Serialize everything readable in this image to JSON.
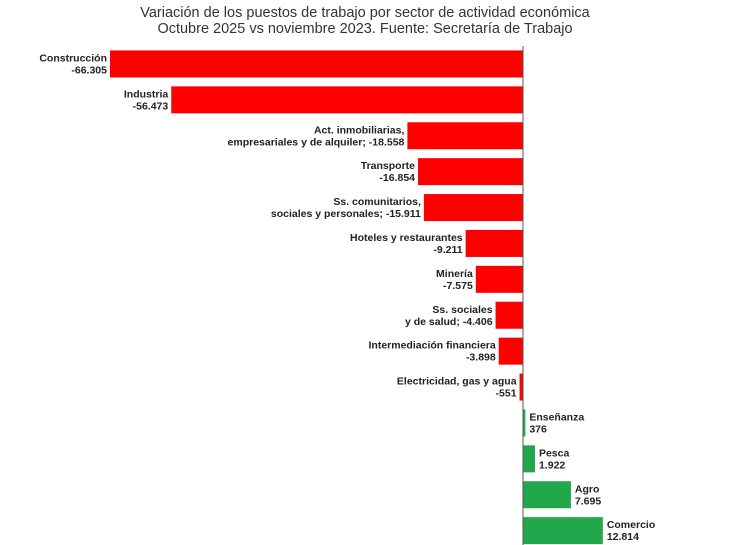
{
  "chart_data": {
    "type": "bar",
    "orientation": "horizontal",
    "title": "Variación de los puestos de trabajo por sector de actividad económica",
    "subtitle": "Octubre 2025 vs noviembre 2023. Fuente: Secretaría de Trabajo",
    "xlabel": "",
    "ylabel": "",
    "xlim": [
      -66305,
      12814
    ],
    "grid": false,
    "colors": {
      "negative": "#ff0000",
      "positive": "#22a74a",
      "axis": "#555555"
    },
    "categories": [
      [
        "Construcción"
      ],
      [
        "Industria"
      ],
      [
        "Act. inmobiliarias,",
        "empresariales y de alquiler;"
      ],
      [
        "Transporte"
      ],
      [
        "Ss. comunitarios,",
        "sociales y personales;"
      ],
      [
        "Hoteles y restaurantes"
      ],
      [
        "Minería"
      ],
      [
        "Ss. sociales",
        "y de salud;"
      ],
      [
        "Intermediación financiera"
      ],
      [
        "Electricidad, gas y agua"
      ],
      [
        "Enseñanza"
      ],
      [
        "Pesca"
      ],
      [
        "Agro"
      ],
      [
        "Comercio"
      ]
    ],
    "values": [
      -66305,
      -56473,
      -18558,
      -16854,
      -15911,
      -9211,
      -7575,
      -4406,
      -3898,
      -551,
      376,
      1922,
      7695,
      12814
    ],
    "value_labels": [
      "-66.305",
      "-56.473",
      "-18.558",
      "-16.854",
      "-15.911",
      "-9.211",
      "-7.575",
      "-4.406",
      "-3.898",
      "-551",
      "376",
      "1.922",
      "7.695",
      "12.814"
    ],
    "label_inline_value": [
      false,
      false,
      true,
      false,
      true,
      false,
      false,
      true,
      false,
      false,
      false,
      false,
      false,
      false
    ]
  }
}
